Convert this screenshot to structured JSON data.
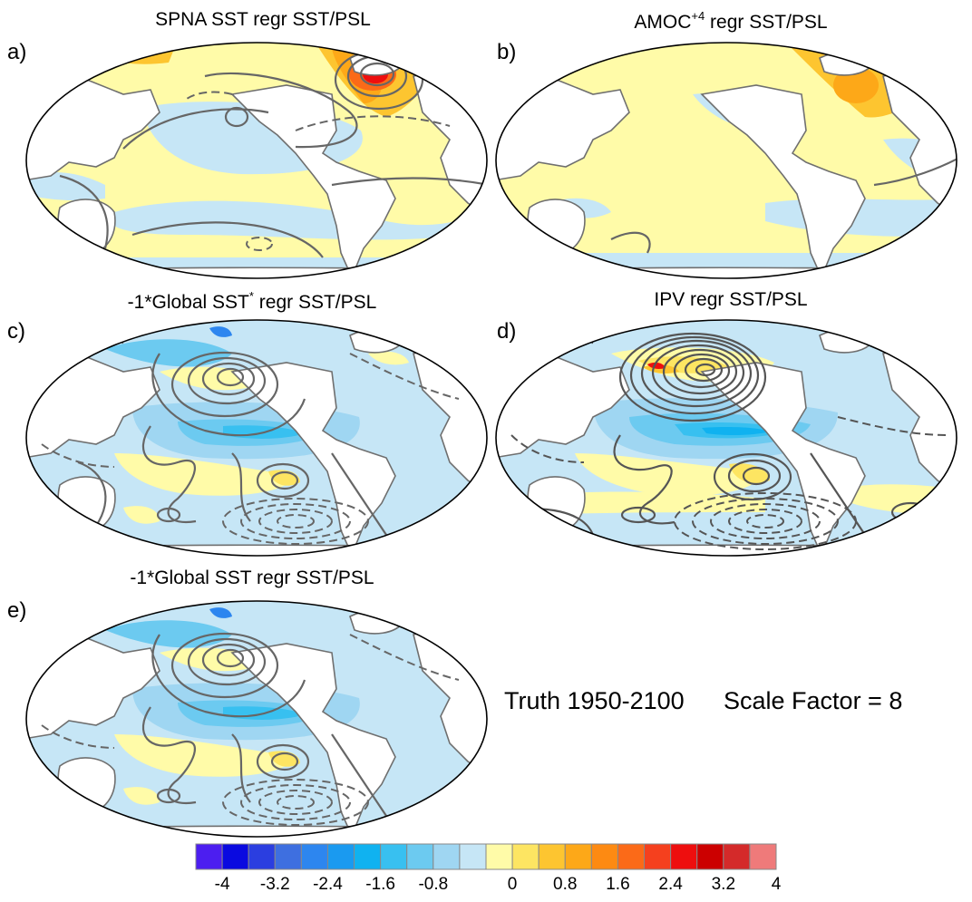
{
  "panels": [
    {
      "label": "a)",
      "title": "SPNA SST regr SST/PSL",
      "sup": "",
      "title_suffix": ""
    },
    {
      "label": "b)",
      "title": "AMOC",
      "sup": "+4",
      "title_suffix": " regr SST/PSL"
    },
    {
      "label": "c)",
      "title": "-1*Global SST",
      "sup": "*",
      "title_suffix": " regr SST/PSL"
    },
    {
      "label": "d)",
      "title": "IPV regr SST/PSL",
      "sup": "",
      "title_suffix": ""
    },
    {
      "label": "e)",
      "title": "-1*Global SST regr SST/PSL",
      "sup": "",
      "title_suffix": ""
    }
  ],
  "annotation": {
    "period": "Truth 1950-2100",
    "scale": "Scale Factor = 8"
  },
  "colorbar": {
    "colors": [
      "#4c1ef0",
      "#0a0ae0",
      "#2b3ee0",
      "#3e6fe0",
      "#2d86ef",
      "#1a9af0",
      "#10b2f0",
      "#38c0f0",
      "#6ccaf0",
      "#9fd6f2",
      "#c6e6f6",
      "#fffba8",
      "#fde562",
      "#fdc530",
      "#fda818",
      "#fd8a12",
      "#fb6a18",
      "#f5401e",
      "#ee0e0e",
      "#cc0000",
      "#d42a2a",
      "#ef7a7a"
    ],
    "tick_labels": [
      "-4",
      "-3.2",
      "-2.4",
      "-1.6",
      "-0.8",
      "0",
      "0.8",
      "1.6",
      "2.4",
      "3.2",
      "4"
    ]
  },
  "colors": {
    "ocean_pos": "#fffba8",
    "ocean_neg": "#c6e6f6",
    "land": "#ffffff",
    "contour": "#666666",
    "coast": "#6f6f6f"
  }
}
